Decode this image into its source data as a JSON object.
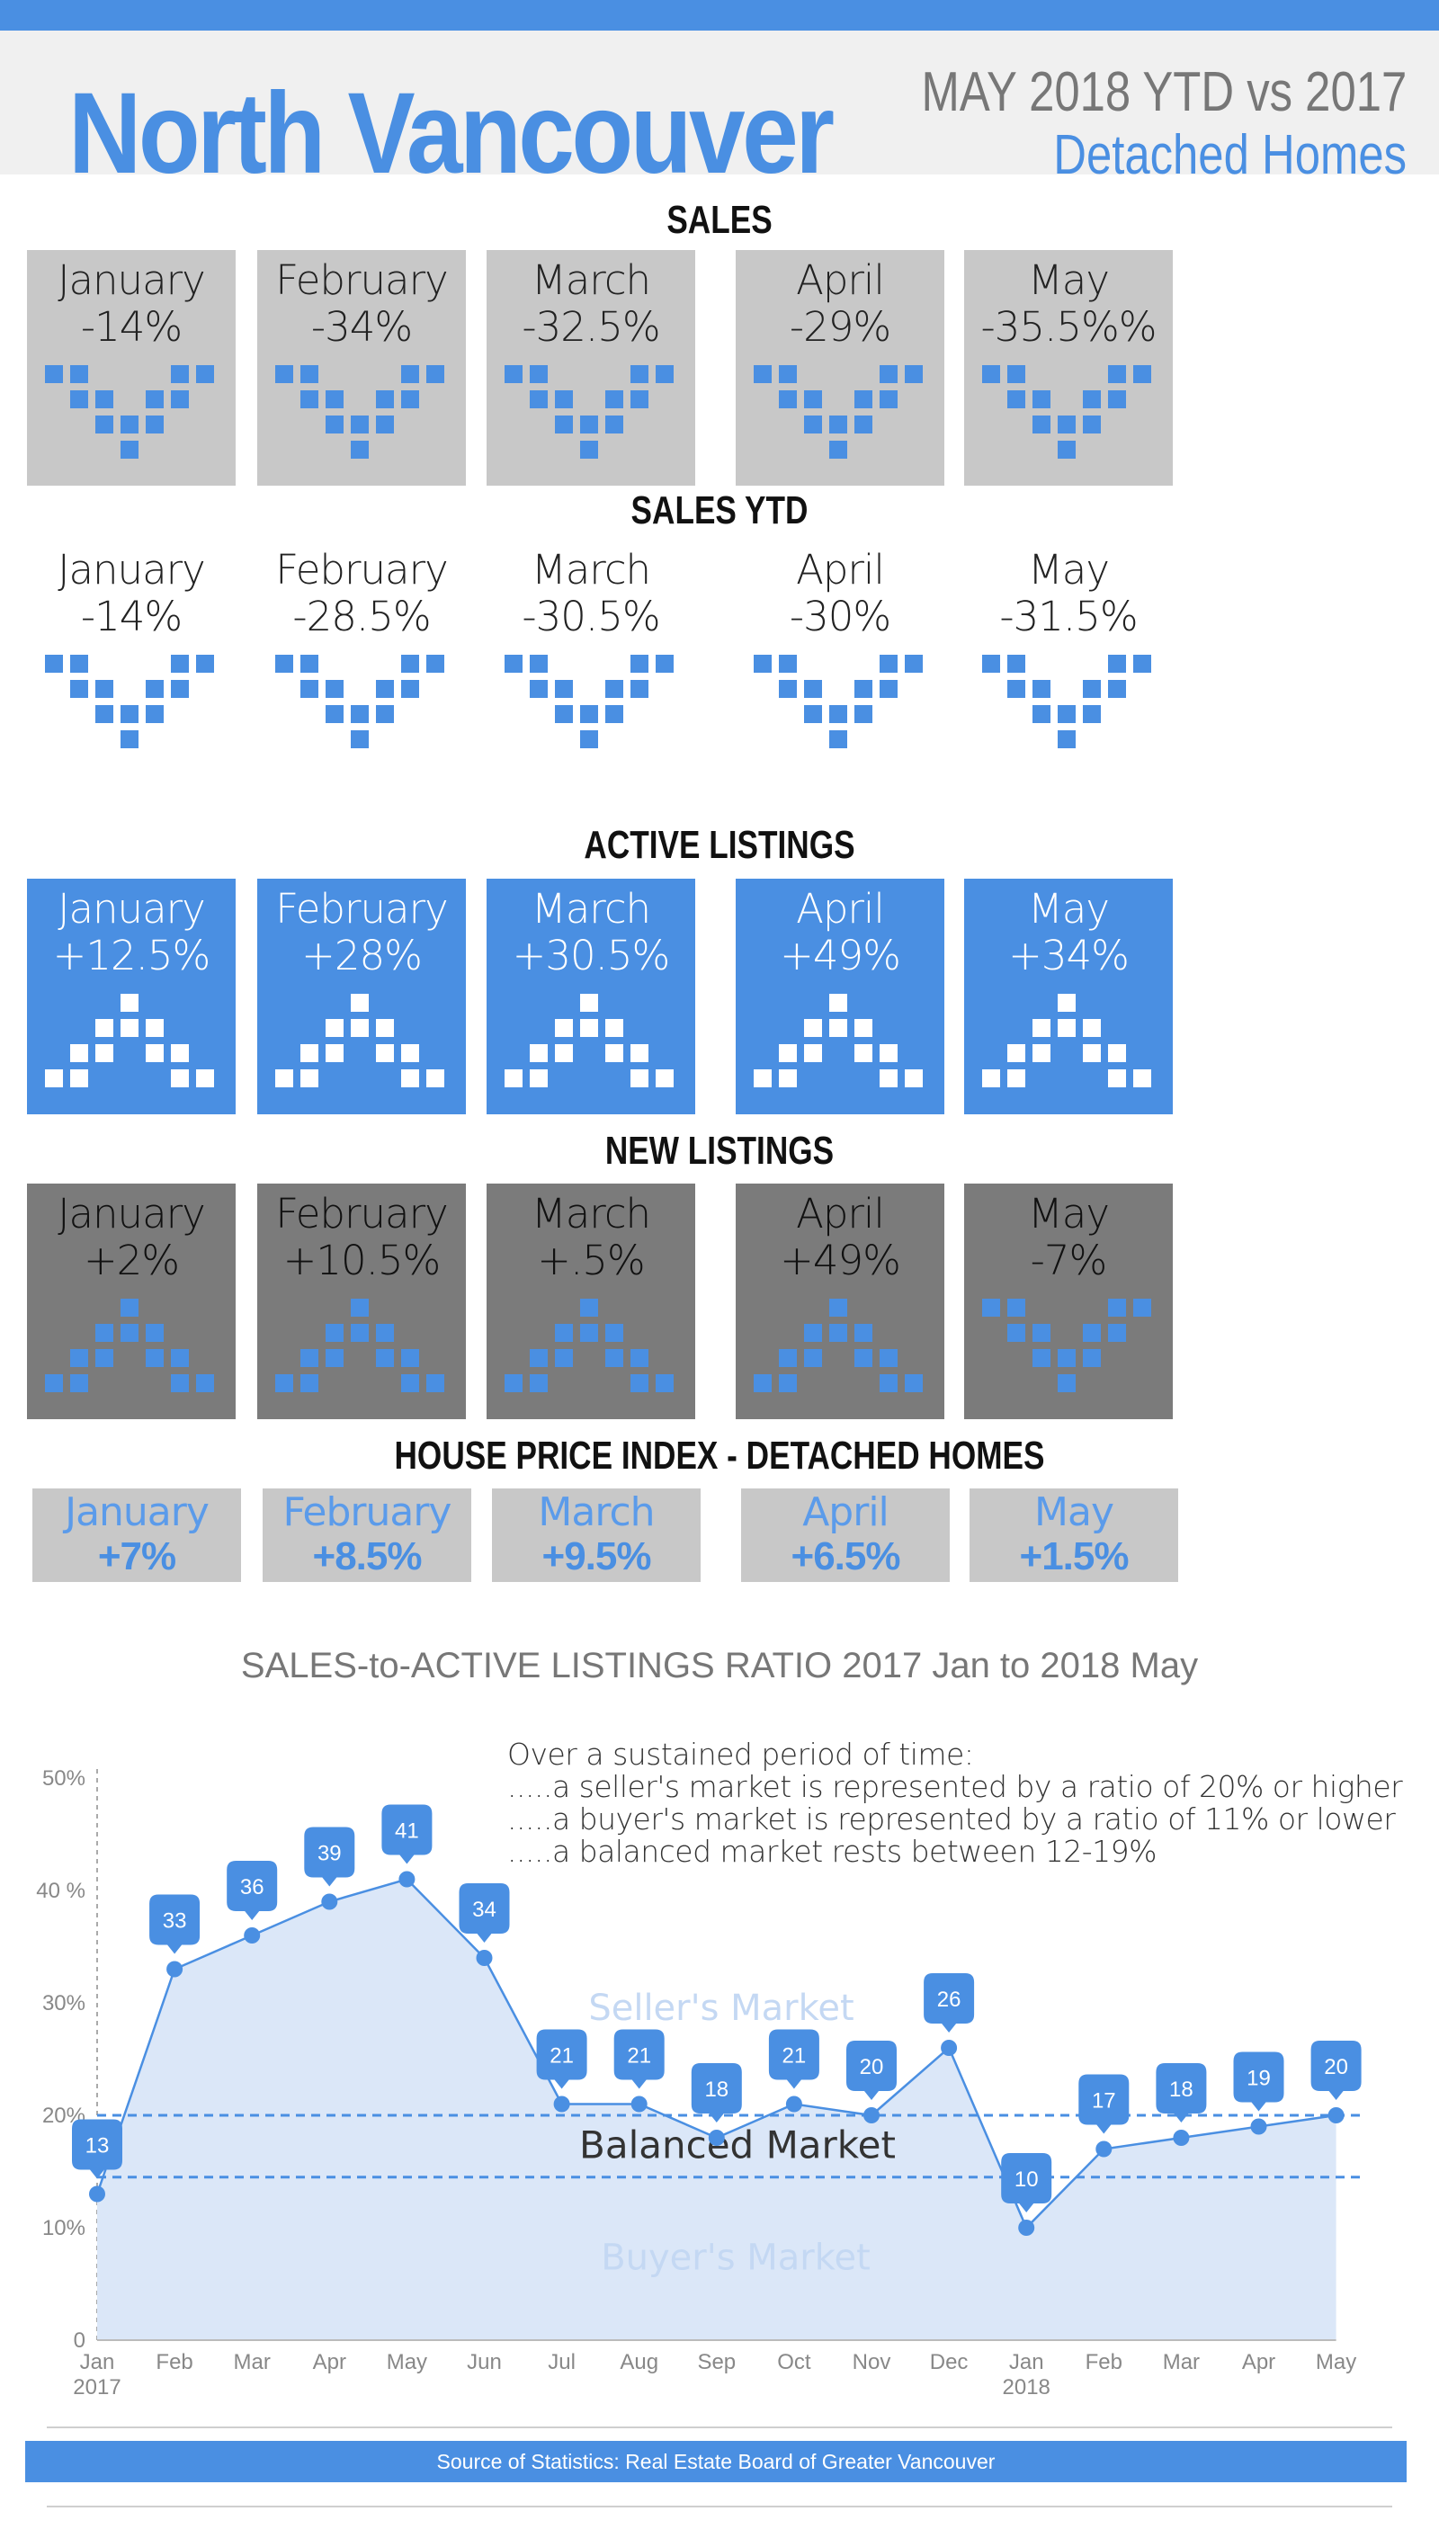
{
  "header": {
    "title": "North Vancouver",
    "subtitle1": "MAY 2018 YTD vs 2017",
    "subtitle2": "Detached Homes"
  },
  "sections": {
    "sales": "SALES",
    "sales_ytd": "SALES YTD",
    "active": "ACTIVE LISTINGS",
    "new": "NEW LISTINGS",
    "hpi": "HOUSE PRICE INDEX - DETACHED HOMES"
  },
  "sales": [
    {
      "month": "January",
      "change": "-14%",
      "dir": "down"
    },
    {
      "month": "February",
      "change": "-34%",
      "dir": "down"
    },
    {
      "month": "March",
      "change": "-32.5%",
      "dir": "down"
    },
    {
      "month": "April",
      "change": "-29%",
      "dir": "down"
    },
    {
      "month": "May",
      "change": "-35.5%%",
      "dir": "down"
    }
  ],
  "sales_ytd": [
    {
      "month": "January",
      "change": "-14%",
      "dir": "down"
    },
    {
      "month": "February",
      "change": "-28.5%",
      "dir": "down"
    },
    {
      "month": "March",
      "change": "-30.5%",
      "dir": "down"
    },
    {
      "month": "April",
      "change": "-30%",
      "dir": "down"
    },
    {
      "month": "May",
      "change": "-31.5%",
      "dir": "down"
    }
  ],
  "active": [
    {
      "month": "January",
      "change": "+12.5%",
      "dir": "up"
    },
    {
      "month": "February",
      "change": "+28%",
      "dir": "up"
    },
    {
      "month": "March",
      "change": "+30.5%",
      "dir": "up"
    },
    {
      "month": "April",
      "change": "+49%",
      "dir": "up"
    },
    {
      "month": "May",
      "change": "+34%",
      "dir": "up"
    }
  ],
  "new_listings": [
    {
      "month": "January",
      "change": "+2%",
      "dir": "up"
    },
    {
      "month": "February",
      "change": "+10.5%",
      "dir": "up"
    },
    {
      "month": "March",
      "change": "+.5%",
      "dir": "up"
    },
    {
      "month": "April",
      "change": "+49%",
      "dir": "up"
    },
    {
      "month": "May",
      "change": "-7%",
      "dir": "down"
    }
  ],
  "hpi": [
    {
      "month": "January",
      "change": "+7%"
    },
    {
      "month": "February",
      "change": "+8.5%"
    },
    {
      "month": "March",
      "change": "+9.5%"
    },
    {
      "month": "April",
      "change": "+6.5%"
    },
    {
      "month": "May",
      "change": "+1.5%"
    }
  ],
  "notes": {
    "line1": "Over a sustained period of time:",
    "line2": ".....a seller's market is represented by a ratio of 20% or higher",
    "line3": ".....a buyer's market is represented by a ratio of 11% or lower",
    "line4": ".....a balanced market rests between 12-19%"
  },
  "footer": "Source of Statistics: Real Estate Board of Greater Vancouver",
  "colors": {
    "accent": "#4a8fe2",
    "area_fill": "#dbe7f8",
    "sales_card": "#c8c8c8",
    "new_card": "#7b7b7b"
  },
  "chart_data": {
    "type": "area",
    "title": "SALES-to-ACTIVE LISTINGS RATIO 2017 Jan to 2018 May",
    "x": [
      "Jan",
      "Feb",
      "Mar",
      "Apr",
      "May",
      "Jun",
      "Jul",
      "Aug",
      "Sep",
      "Oct",
      "Nov",
      "Dec",
      "Jan",
      "Feb",
      "Mar",
      "Apr",
      "May"
    ],
    "year_labels": [
      {
        "index": 0,
        "label": "2017"
      },
      {
        "index": 12,
        "label": "2018"
      }
    ],
    "y_ticks": [
      "0",
      "10%",
      "20%",
      "30%",
      "40 %",
      "50%"
    ],
    "ylim": [
      0,
      50
    ],
    "series": [
      {
        "values": [
          13,
          33,
          36,
          39,
          41,
          34,
          21,
          21,
          18,
          21,
          20,
          26,
          10,
          17,
          18,
          19,
          20
        ]
      }
    ],
    "reference_lines": [
      20,
      14.5
    ],
    "zones": {
      "seller": "Seller's Market",
      "balanced": "Balanced Market",
      "buyer": "Buyer's Market"
    },
    "grid": false
  }
}
